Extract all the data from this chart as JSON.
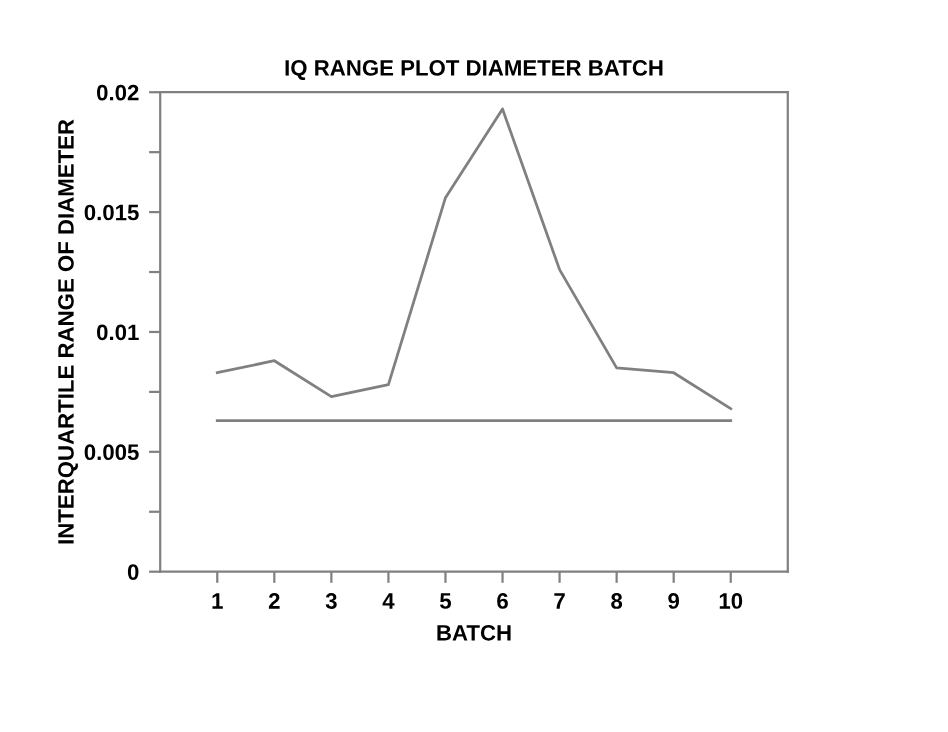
{
  "chart_data": {
    "type": "line",
    "title": "IQ RANGE PLOT DIAMETER BATCH",
    "xlabel": "BATCH",
    "ylabel": "INTERQUARTILE RANGE OF DIAMETER",
    "x": [
      1,
      2,
      3,
      4,
      5,
      6,
      7,
      8,
      9,
      10
    ],
    "series": [
      {
        "color": "#808080",
        "values": [
          0.0083,
          0.0088,
          0.0073,
          0.0078,
          0.0156,
          0.0193,
          0.0126,
          0.0085,
          0.0083,
          0.0068
        ]
      },
      {
        "color": "#808080",
        "values": [
          0.0063,
          0.0063,
          0.0063,
          0.0063,
          0.0063,
          0.0063,
          0.0063,
          0.0063,
          0.0063,
          0.0063
        ]
      }
    ],
    "xlim": [
      0,
      11
    ],
    "xticks": [
      1,
      2,
      3,
      4,
      5,
      6,
      7,
      8,
      9,
      10
    ],
    "ylim": [
      0,
      0.02
    ],
    "yticks": [
      0,
      {
        "value": 0.0025,
        "label": null
      },
      0.005,
      {
        "value": 0.0075,
        "label": null
      },
      0.01,
      {
        "value": 0.0125,
        "label": null
      },
      0.015,
      {
        "value": 0.0175,
        "label": null
      },
      0.02
    ],
    "grid": false,
    "legend": false,
    "marker": "none",
    "line_style": "solid"
  }
}
